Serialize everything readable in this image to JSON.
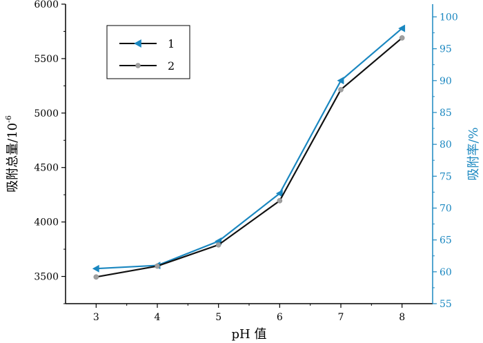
{
  "chart_data": {
    "type": "line",
    "x": [
      3,
      4,
      5,
      6,
      7,
      8
    ],
    "xlabel": "pH 值",
    "xlim": [
      2.5,
      8.5
    ],
    "x_ticks": [
      "3",
      "4",
      "5",
      "6",
      "7",
      "8"
    ],
    "ylabel_left": "吸附总量/10",
    "ylabel_left_exponent": "-6",
    "ylim_left": [
      3250,
      6000
    ],
    "y_ticks_left": [
      "3500",
      "4000",
      "4500",
      "5000",
      "5500",
      "6000"
    ],
    "ylabel_right": "吸附率/%",
    "ylim_right": [
      55,
      102
    ],
    "y_ticks_right": [
      "55",
      "60",
      "65",
      "70",
      "75",
      "80",
      "85",
      "90",
      "95",
      "100"
    ],
    "right_axis_color": "#1a87c0",
    "series": [
      {
        "name": "1",
        "axis": "right",
        "marker": "triangle-left",
        "line_color": "#1a87c0",
        "marker_color": "#1a87c0",
        "values": [
          60.5,
          61.0,
          64.8,
          72.3,
          90.0,
          98.2
        ]
      },
      {
        "name": "2",
        "axis": "left",
        "marker": "circle",
        "line_color": "#111111",
        "marker_color": "#a0a0a0",
        "values": [
          3495,
          3595,
          3790,
          4195,
          5215,
          5690
        ]
      }
    ],
    "legend_position": "top-left"
  }
}
